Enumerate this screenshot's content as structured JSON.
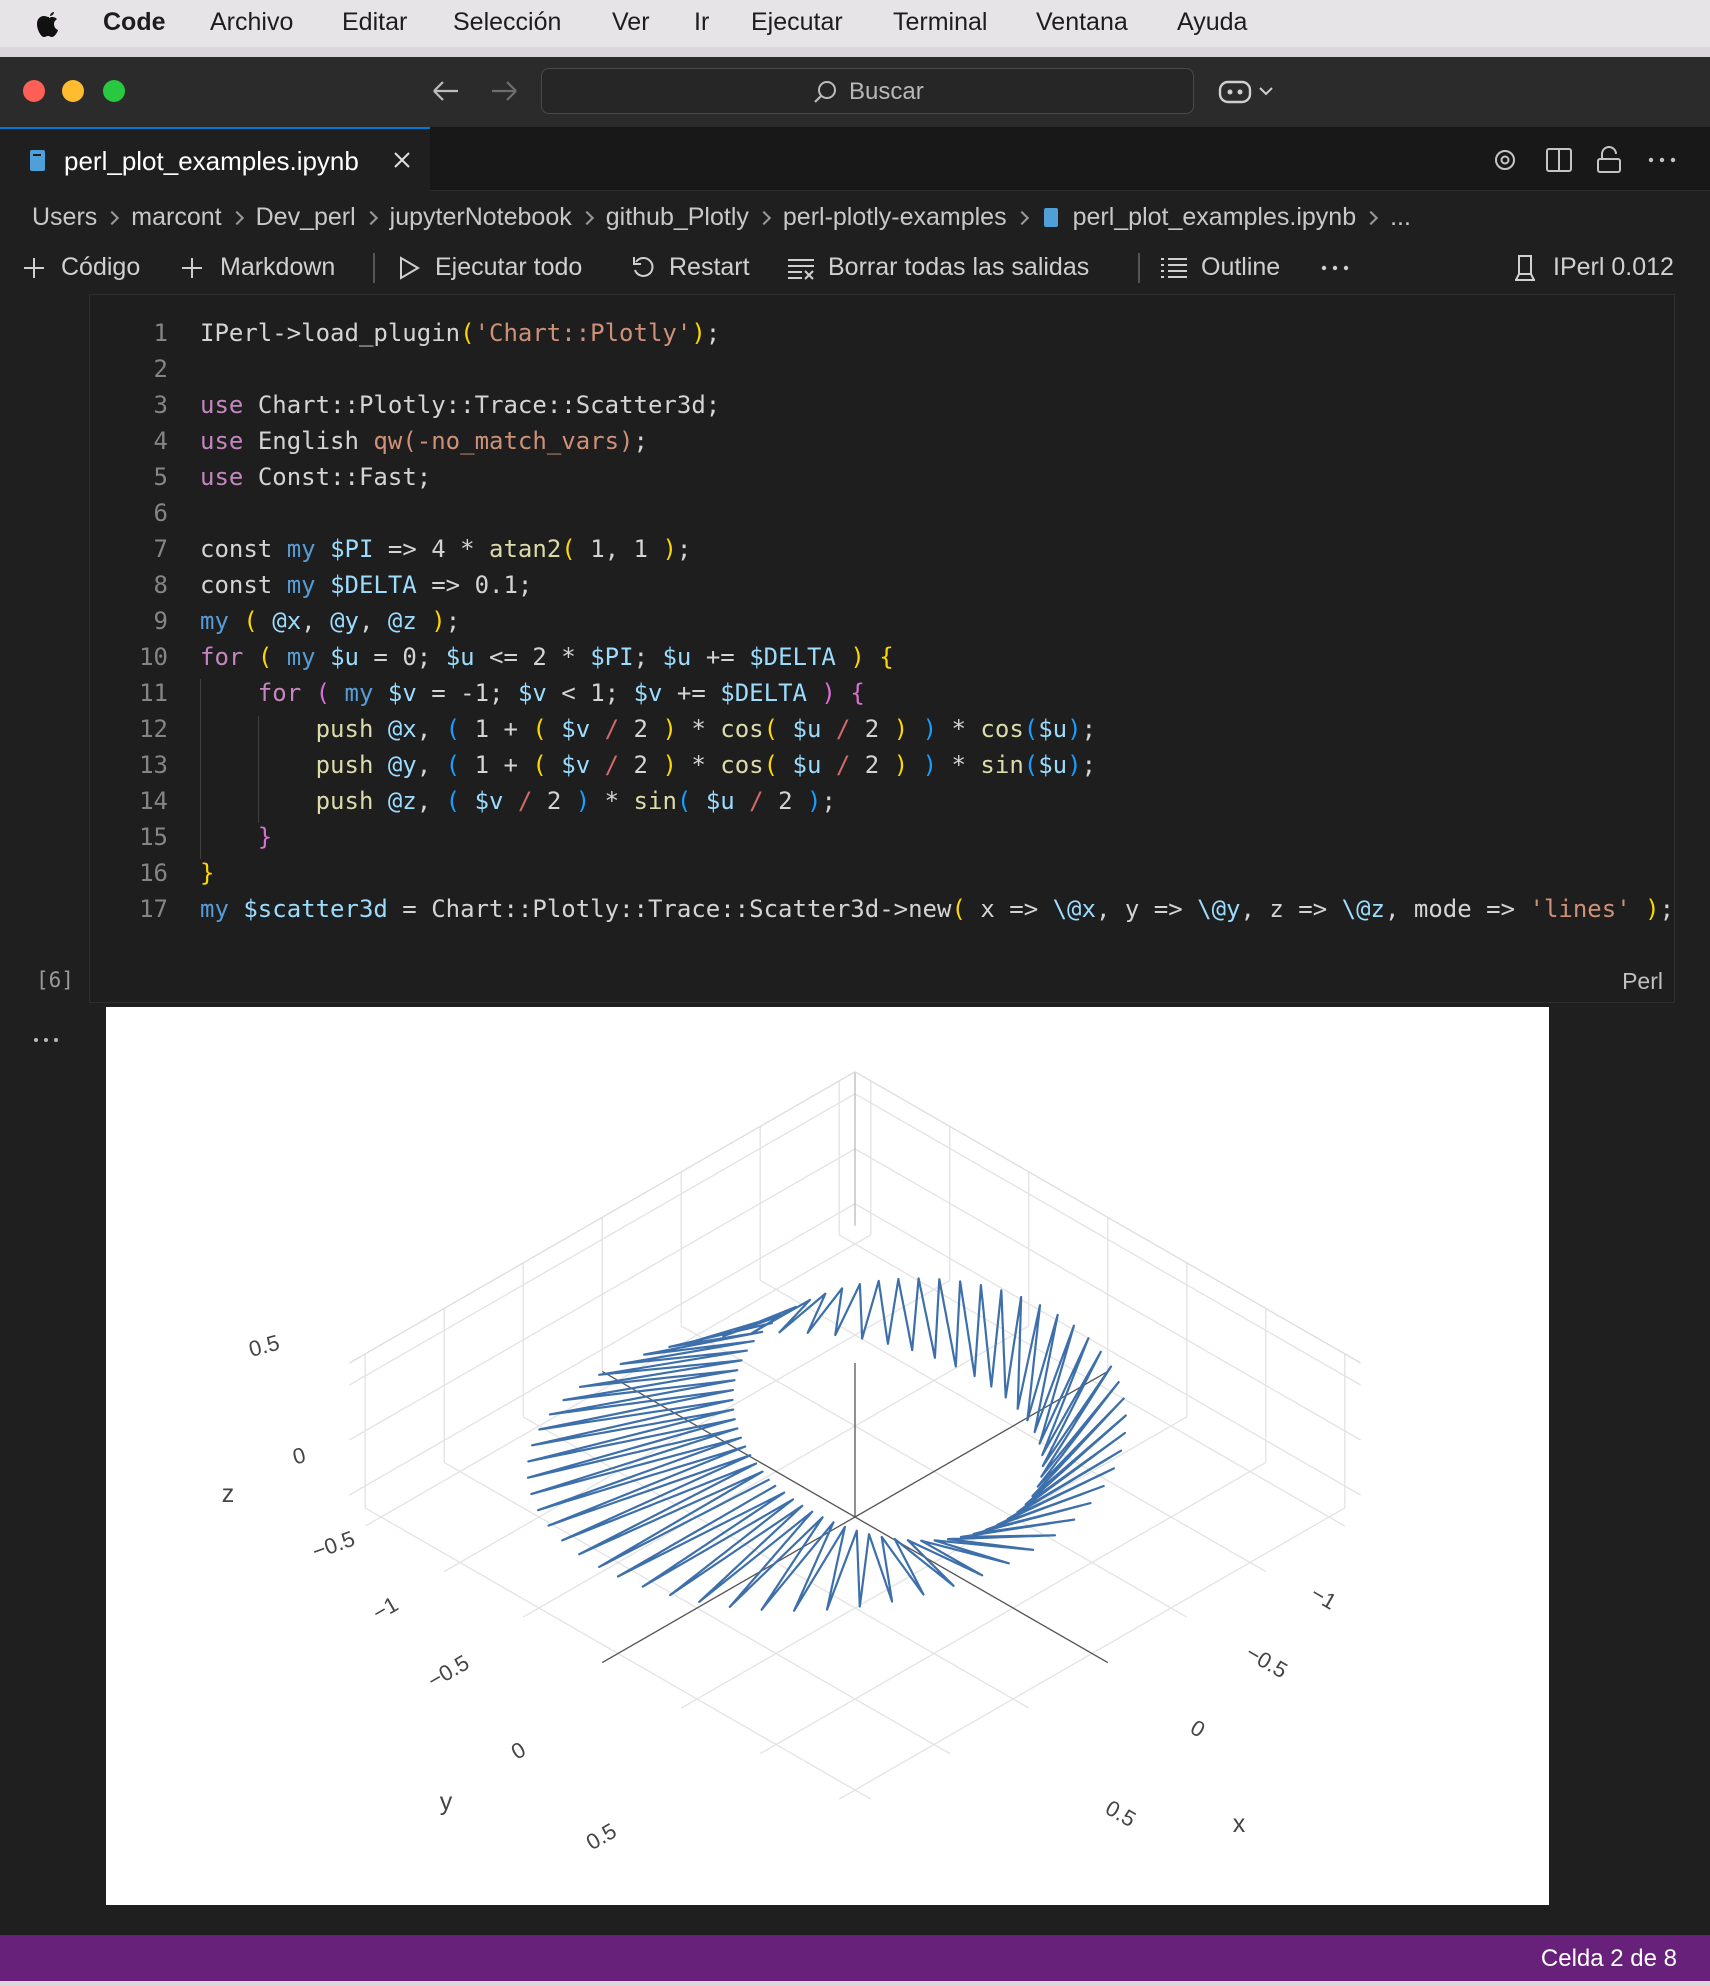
{
  "menu_bar": {
    "app": "Code",
    "items": [
      "Archivo",
      "Editar",
      "Selección",
      "Ver",
      "Ir",
      "Ejecutar",
      "Terminal",
      "Ventana",
      "Ayuda"
    ]
  },
  "search": "Buscar",
  "tab": {
    "title": "perl_plot_examples.ipynb"
  },
  "breadcrumbs": [
    "Users",
    "marcont",
    "Dev_perl",
    "jupyterNotebook",
    "github_Plotly",
    "perl-plotly-examples",
    "perl_plot_examples.ipynb",
    "..."
  ],
  "toolbar": {
    "items": [
      "Código",
      "Markdown",
      "Ejecutar todo",
      "Restart",
      "Borrar todas las salidas",
      "Outline"
    ],
    "kernel": "IPerl 0.012"
  },
  "cell": {
    "execution_count": "[6]",
    "language": "Perl",
    "lines": [
      {
        "n": 1,
        "text": "IPerl->load_plugin('Chart::Plotly');"
      },
      {
        "n": 2
      },
      {
        "n": 3,
        "text": "use Chart::Plotly::Trace::Scatter3d;"
      },
      {
        "n": 4,
        "text": "use English qw(-no_match_vars);"
      },
      {
        "n": 5,
        "text": "use Const::Fast;"
      },
      {
        "n": 6
      },
      {
        "n": 7,
        "text": "const my $PI => 4 * atan2( 1, 1 );"
      },
      {
        "n": 8,
        "text": "const my $DELTA => 0.1;"
      },
      {
        "n": 9,
        "text": "my ( @x, @y, @z );"
      },
      {
        "n": 10,
        "text": "for ( my $u = 0; $u <= 2 * $PI; $u += $DELTA ) {"
      },
      {
        "n": 11,
        "text": "    for ( my $v = -1; $v < 1; $v += $DELTA ) {"
      },
      {
        "n": 12,
        "text": "        push @x, ( 1 + ( $v / 2 ) * cos( $u / 2 ) ) * cos($u);"
      },
      {
        "n": 13,
        "text": "        push @y, ( 1 + ( $v / 2 ) * cos( $u / 2 ) ) * sin($u);"
      },
      {
        "n": 14,
        "text": "        push @z, ( $v / 2 ) * sin( $u / 2 );"
      },
      {
        "n": 15,
        "text": "    }"
      },
      {
        "n": 16,
        "text": "}"
      },
      {
        "n": 17,
        "text": "my $scatter3d = Chart::Plotly::Trace::Scatter3d->new( x => \\@x, y => \\@y, z => \\@z, mode => 'lines' );"
      }
    ]
  },
  "plot": {
    "z_axis": {
      "title": "z",
      "ticks": [
        "0.5",
        "0",
        "−0.5"
      ]
    },
    "y_axis": {
      "title": "y",
      "ticks": [
        "−1",
        "−0.5",
        "0",
        "0.5"
      ]
    },
    "x_axis": {
      "title": "x",
      "ticks": [
        "−1",
        "−0.5",
        "0",
        "0.5"
      ]
    }
  },
  "status_bar": {
    "cell_position": "Celda 2 de 8"
  }
}
